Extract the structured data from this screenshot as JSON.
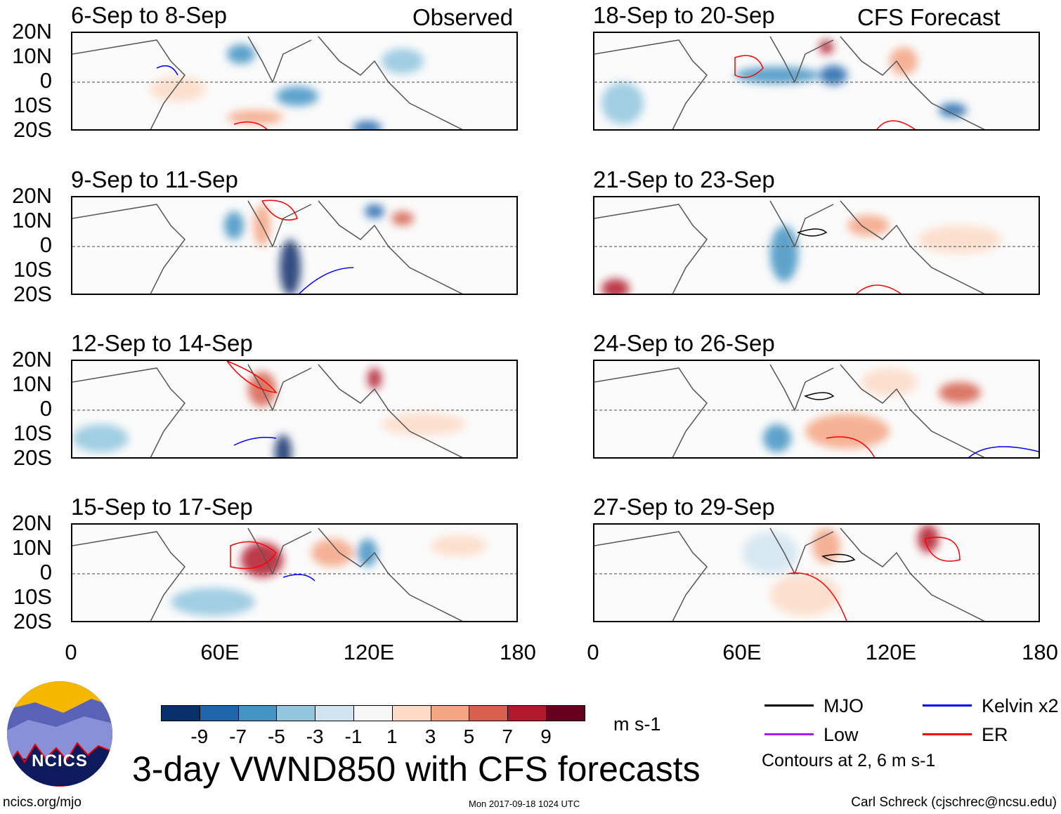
{
  "panels_left": [
    {
      "title": "6-Sep to 8-Sep",
      "tag": "Observed"
    },
    {
      "title": "9-Sep to 11-Sep",
      "tag": ""
    },
    {
      "title": "12-Sep to 14-Sep",
      "tag": ""
    },
    {
      "title": "15-Sep to 17-Sep",
      "tag": ""
    }
  ],
  "panels_right": [
    {
      "title": "18-Sep to 20-Sep",
      "tag": "CFS Forecast"
    },
    {
      "title": "21-Sep to 23-Sep",
      "tag": ""
    },
    {
      "title": "24-Sep to 26-Sep",
      "tag": ""
    },
    {
      "title": "27-Sep to 29-Sep",
      "tag": ""
    }
  ],
  "lat_labels": [
    "20N",
    "10N",
    "0",
    "10S",
    "20S"
  ],
  "lon_labels": [
    "0",
    "60E",
    "120E",
    "180"
  ],
  "colorbar": {
    "colors": [
      "#08306b",
      "#2166ac",
      "#4393c3",
      "#92c5de",
      "#d1e5f0",
      "#f7f7f7",
      "#fddbc7",
      "#f4a582",
      "#d6604d",
      "#b2182b",
      "#67001f"
    ],
    "labels": [
      "-9",
      "-7",
      "-5",
      "-3",
      "-1",
      "1",
      "3",
      "5",
      "7",
      "9"
    ],
    "units": "m s-1"
  },
  "legend": {
    "items": [
      {
        "label": "MJO",
        "color": "#000000"
      },
      {
        "label": "Kelvin x2",
        "color": "#0000ff"
      },
      {
        "label": "Low",
        "color": "#a020f0"
      },
      {
        "label": "ER",
        "color": "#ff0000"
      }
    ],
    "note": "Contours at 2, 6 m s-1"
  },
  "title": "3-day VWND850 with CFS forecasts",
  "logo_text": "NCICS",
  "footer": {
    "url": "ncics.org/mjo",
    "timestamp": "Mon 2017-09-18 1024 UTC",
    "author": "Carl Schreck (cjschrec@ncsu.edu)"
  }
}
